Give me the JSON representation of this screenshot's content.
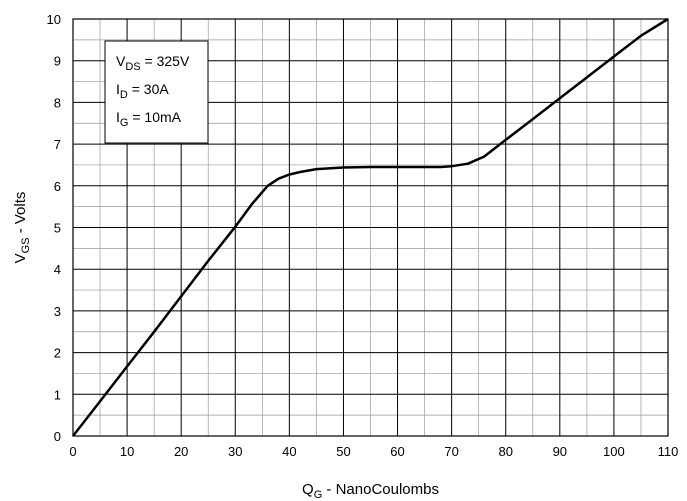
{
  "chart_data": {
    "type": "line",
    "title": "",
    "xlabel": {
      "main": "Q",
      "sub": "G",
      "rest": " - NanoCoulombs"
    },
    "ylabel": {
      "main": "V",
      "sub": "GS",
      "rest": " - Volts"
    },
    "xlim": [
      0,
      110
    ],
    "ylim": [
      0,
      10
    ],
    "x_major_ticks": [
      0,
      10,
      20,
      30,
      40,
      50,
      60,
      70,
      80,
      90,
      100,
      110
    ],
    "y_major_ticks": [
      0,
      1,
      2,
      3,
      4,
      5,
      6,
      7,
      8,
      9,
      10
    ],
    "grid": "on (major and minor)",
    "legend_box": [
      {
        "main": "V",
        "sub": "DS",
        "rest": " = 325V"
      },
      {
        "main": "I",
        "sub": "D",
        "rest": " = 30A"
      },
      {
        "main": "I",
        "sub": "G",
        "rest": " = 10mA"
      }
    ],
    "legend_position": "top-left",
    "series": [
      {
        "x": [
          0,
          5,
          10,
          15,
          20,
          25,
          30,
          33,
          36,
          38,
          40,
          42,
          45,
          50,
          55,
          60,
          65,
          68,
          70,
          73,
          76,
          80,
          85,
          90,
          95,
          100,
          105,
          110
        ],
        "y": [
          0,
          0.83,
          1.67,
          2.5,
          3.35,
          4.2,
          5.02,
          5.55,
          6.0,
          6.17,
          6.27,
          6.33,
          6.4,
          6.44,
          6.45,
          6.45,
          6.45,
          6.45,
          6.47,
          6.53,
          6.7,
          7.1,
          7.6,
          8.1,
          8.6,
          9.1,
          9.6,
          10.0
        ]
      }
    ]
  }
}
